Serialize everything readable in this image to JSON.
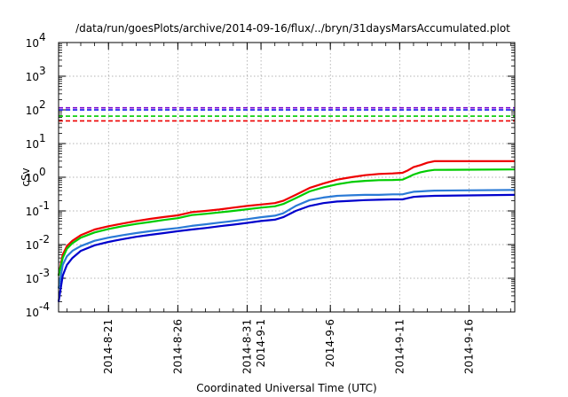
{
  "chart_data": {
    "type": "line",
    "title": "/data/run/goesPlots/archive/2014-09-16/flux/../bryn/31daysMarsAccumulated.plot",
    "xlabel": "Coordinated Universal Time (UTC)",
    "ylabel": "cSv",
    "yscale": "log",
    "ylim": [
      0.0001,
      10000
    ],
    "xlim": [
      -3.6,
      29.3
    ],
    "grid": true,
    "x_ticks": [
      {
        "x": 0,
        "lines": [
          "2014-8-21"
        ]
      },
      {
        "x": 5,
        "lines": [
          "2014-8-26"
        ]
      },
      {
        "x": 10,
        "lines": [
          "2014-8-31"
        ]
      },
      {
        "x": 11,
        "lines": [
          "2014-9-1"
        ]
      },
      {
        "x": 16,
        "lines": [
          "2014-9-6"
        ]
      },
      {
        "x": 21,
        "lines": [
          "2014-9-11"
        ]
      },
      {
        "x": 26,
        "lines": [
          "2014-9-16"
        ]
      }
    ],
    "y_ticks": [
      {
        "y": 0.0001,
        "exp": "-4"
      },
      {
        "y": 0.001,
        "exp": "-3"
      },
      {
        "y": 0.01,
        "exp": "-2"
      },
      {
        "y": 0.1,
        "exp": "-1"
      },
      {
        "y": 1,
        "exp": "0"
      },
      {
        "y": 10,
        "exp": "1"
      },
      {
        "y": 100,
        "exp": "2"
      },
      {
        "y": 1000,
        "exp": "3"
      },
      {
        "y": 10000,
        "exp": "4"
      }
    ],
    "tick_base": "10",
    "thresholds": [
      {
        "y": 115,
        "color": "#7a00cc"
      },
      {
        "y": 100,
        "color": "#0000ee"
      },
      {
        "y": 65,
        "color": "#00cc00"
      },
      {
        "y": 47,
        "color": "#ee0000"
      }
    ],
    "series": [
      {
        "color": "#ee0000",
        "points": [
          [
            -3.6,
            0.0012
          ],
          [
            -3.3,
            0.005
          ],
          [
            -3.0,
            0.009
          ],
          [
            -2.6,
            0.013
          ],
          [
            -2,
            0.019
          ],
          [
            -1,
            0.028
          ],
          [
            0,
            0.035
          ],
          [
            1,
            0.042
          ],
          [
            2,
            0.05
          ],
          [
            3,
            0.058
          ],
          [
            4,
            0.066
          ],
          [
            5,
            0.074
          ],
          [
            6,
            0.092
          ],
          [
            7,
            0.1
          ],
          [
            8,
            0.11
          ],
          [
            9,
            0.125
          ],
          [
            10,
            0.14
          ],
          [
            11,
            0.155
          ],
          [
            12,
            0.17
          ],
          [
            12.6,
            0.2
          ],
          [
            13.5,
            0.3
          ],
          [
            14.5,
            0.48
          ],
          [
            15.5,
            0.65
          ],
          [
            16.5,
            0.85
          ],
          [
            17.5,
            1.0
          ],
          [
            18.5,
            1.15
          ],
          [
            19.5,
            1.25
          ],
          [
            20.5,
            1.3
          ],
          [
            21.2,
            1.35
          ],
          [
            21.6,
            1.6
          ],
          [
            22.0,
            2.0
          ],
          [
            22.5,
            2.3
          ],
          [
            23.0,
            2.7
          ],
          [
            23.5,
            3.0
          ],
          [
            29.3,
            3.0
          ]
        ]
      },
      {
        "color": "#00cc00",
        "points": [
          [
            -3.6,
            0.0012
          ],
          [
            -3.3,
            0.004
          ],
          [
            -3.0,
            0.0075
          ],
          [
            -2.6,
            0.011
          ],
          [
            -2,
            0.016
          ],
          [
            -1,
            0.023
          ],
          [
            0,
            0.029
          ],
          [
            1,
            0.035
          ],
          [
            2,
            0.041
          ],
          [
            3,
            0.047
          ],
          [
            4,
            0.054
          ],
          [
            5,
            0.061
          ],
          [
            6,
            0.075
          ],
          [
            7,
            0.082
          ],
          [
            8,
            0.09
          ],
          [
            9,
            0.1
          ],
          [
            10,
            0.112
          ],
          [
            11,
            0.125
          ],
          [
            12,
            0.137
          ],
          [
            12.6,
            0.16
          ],
          [
            13.5,
            0.24
          ],
          [
            14.5,
            0.38
          ],
          [
            15.5,
            0.5
          ],
          [
            16.5,
            0.62
          ],
          [
            17.5,
            0.72
          ],
          [
            18.5,
            0.78
          ],
          [
            19.5,
            0.82
          ],
          [
            20.5,
            0.83
          ],
          [
            21.2,
            0.85
          ],
          [
            21.6,
            1.0
          ],
          [
            22.0,
            1.2
          ],
          [
            22.5,
            1.4
          ],
          [
            23.0,
            1.55
          ],
          [
            23.5,
            1.65
          ],
          [
            29.3,
            1.7
          ]
        ]
      },
      {
        "color": "#2a7ad6",
        "points": [
          [
            -3.6,
            0.0005
          ],
          [
            -3.3,
            0.0025
          ],
          [
            -3.0,
            0.0045
          ],
          [
            -2.6,
            0.0065
          ],
          [
            -2,
            0.009
          ],
          [
            -1,
            0.013
          ],
          [
            0,
            0.016
          ],
          [
            1,
            0.019
          ],
          [
            2,
            0.022
          ],
          [
            3,
            0.025
          ],
          [
            4,
            0.028
          ],
          [
            5,
            0.031
          ],
          [
            6,
            0.036
          ],
          [
            7,
            0.04
          ],
          [
            8,
            0.045
          ],
          [
            9,
            0.05
          ],
          [
            10,
            0.057
          ],
          [
            11,
            0.065
          ],
          [
            12,
            0.072
          ],
          [
            12.6,
            0.085
          ],
          [
            13.5,
            0.14
          ],
          [
            14.5,
            0.21
          ],
          [
            15.5,
            0.25
          ],
          [
            16.5,
            0.28
          ],
          [
            17.5,
            0.29
          ],
          [
            18.5,
            0.3
          ],
          [
            19.5,
            0.3
          ],
          [
            20.5,
            0.31
          ],
          [
            21.2,
            0.31
          ],
          [
            21.6,
            0.34
          ],
          [
            22.0,
            0.37
          ],
          [
            22.5,
            0.38
          ],
          [
            23.0,
            0.39
          ],
          [
            23.5,
            0.4
          ],
          [
            29.3,
            0.42
          ]
        ]
      },
      {
        "color": "#0000cc",
        "points": [
          [
            -3.6,
            0.0002
          ],
          [
            -3.3,
            0.0012
          ],
          [
            -3.0,
            0.0025
          ],
          [
            -2.6,
            0.004
          ],
          [
            -2,
            0.0065
          ],
          [
            -1,
            0.0095
          ],
          [
            0,
            0.012
          ],
          [
            1,
            0.0145
          ],
          [
            2,
            0.017
          ],
          [
            3,
            0.0195
          ],
          [
            4,
            0.022
          ],
          [
            5,
            0.025
          ],
          [
            6,
            0.028
          ],
          [
            7,
            0.031
          ],
          [
            8,
            0.035
          ],
          [
            9,
            0.039
          ],
          [
            10,
            0.044
          ],
          [
            11,
            0.05
          ],
          [
            12,
            0.055
          ],
          [
            12.6,
            0.065
          ],
          [
            13.5,
            0.1
          ],
          [
            14.5,
            0.14
          ],
          [
            15.5,
            0.17
          ],
          [
            16.5,
            0.19
          ],
          [
            17.5,
            0.2
          ],
          [
            18.5,
            0.21
          ],
          [
            19.5,
            0.215
          ],
          [
            20.5,
            0.22
          ],
          [
            21.2,
            0.22
          ],
          [
            21.6,
            0.24
          ],
          [
            22.0,
            0.26
          ],
          [
            22.5,
            0.27
          ],
          [
            23.0,
            0.275
          ],
          [
            23.5,
            0.28
          ],
          [
            29.3,
            0.3
          ]
        ]
      }
    ]
  }
}
